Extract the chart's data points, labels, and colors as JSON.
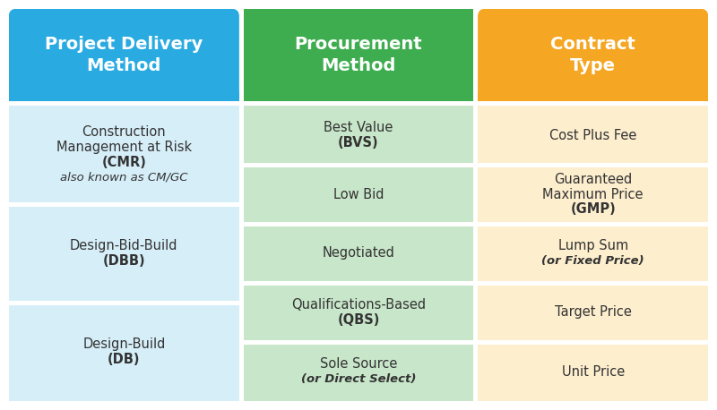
{
  "col1_header": "Project Delivery\nMethod",
  "col2_header": "Procurement\nMethod",
  "col3_header": "Contract\nType",
  "col1_header_bg": "#29ABE2",
  "col2_header_bg": "#3EAD4F",
  "col3_header_bg": "#F5A623",
  "col1_body_bg": "#D6EEF8",
  "col2_body_bg": "#C8E6C9",
  "col3_body_bg": "#FDEECE",
  "header_text_color": "#FFFFFF",
  "body_text_color": "#333333",
  "bg_color": "#FFFFFF",
  "col1_rows": [
    {
      "text": "Construction\nManagement at Risk\n(CMR)\nalso known as CM/GC",
      "italic_line": 3
    },
    {
      "text": "Design-Bid-Build\n(DBB)",
      "italic_line": -1
    },
    {
      "text": "Design-Build\n(DB)",
      "italic_line": -1
    }
  ],
  "col2_rows": [
    {
      "text": "Best Value\n(BVS)",
      "italic_line": -1
    },
    {
      "text": "Low Bid",
      "italic_line": -1
    },
    {
      "text": "Negotiated",
      "italic_line": -1
    },
    {
      "text": "Qualifications-Based\n(QBS)",
      "italic_line": -1
    },
    {
      "text": "Sole Source\n(or Direct Select)",
      "italic_line": 1
    }
  ],
  "col3_rows": [
    {
      "text": "Cost Plus Fee",
      "italic_line": -1
    },
    {
      "text": "Guaranteed\nMaximum Price\n(GMP)",
      "italic_line": -1
    },
    {
      "text": "Lump Sum\n(or Fixed Price)",
      "italic_line": 1
    },
    {
      "text": "Target Price",
      "italic_line": -1
    },
    {
      "text": "Unit Price",
      "italic_line": -1
    }
  ]
}
